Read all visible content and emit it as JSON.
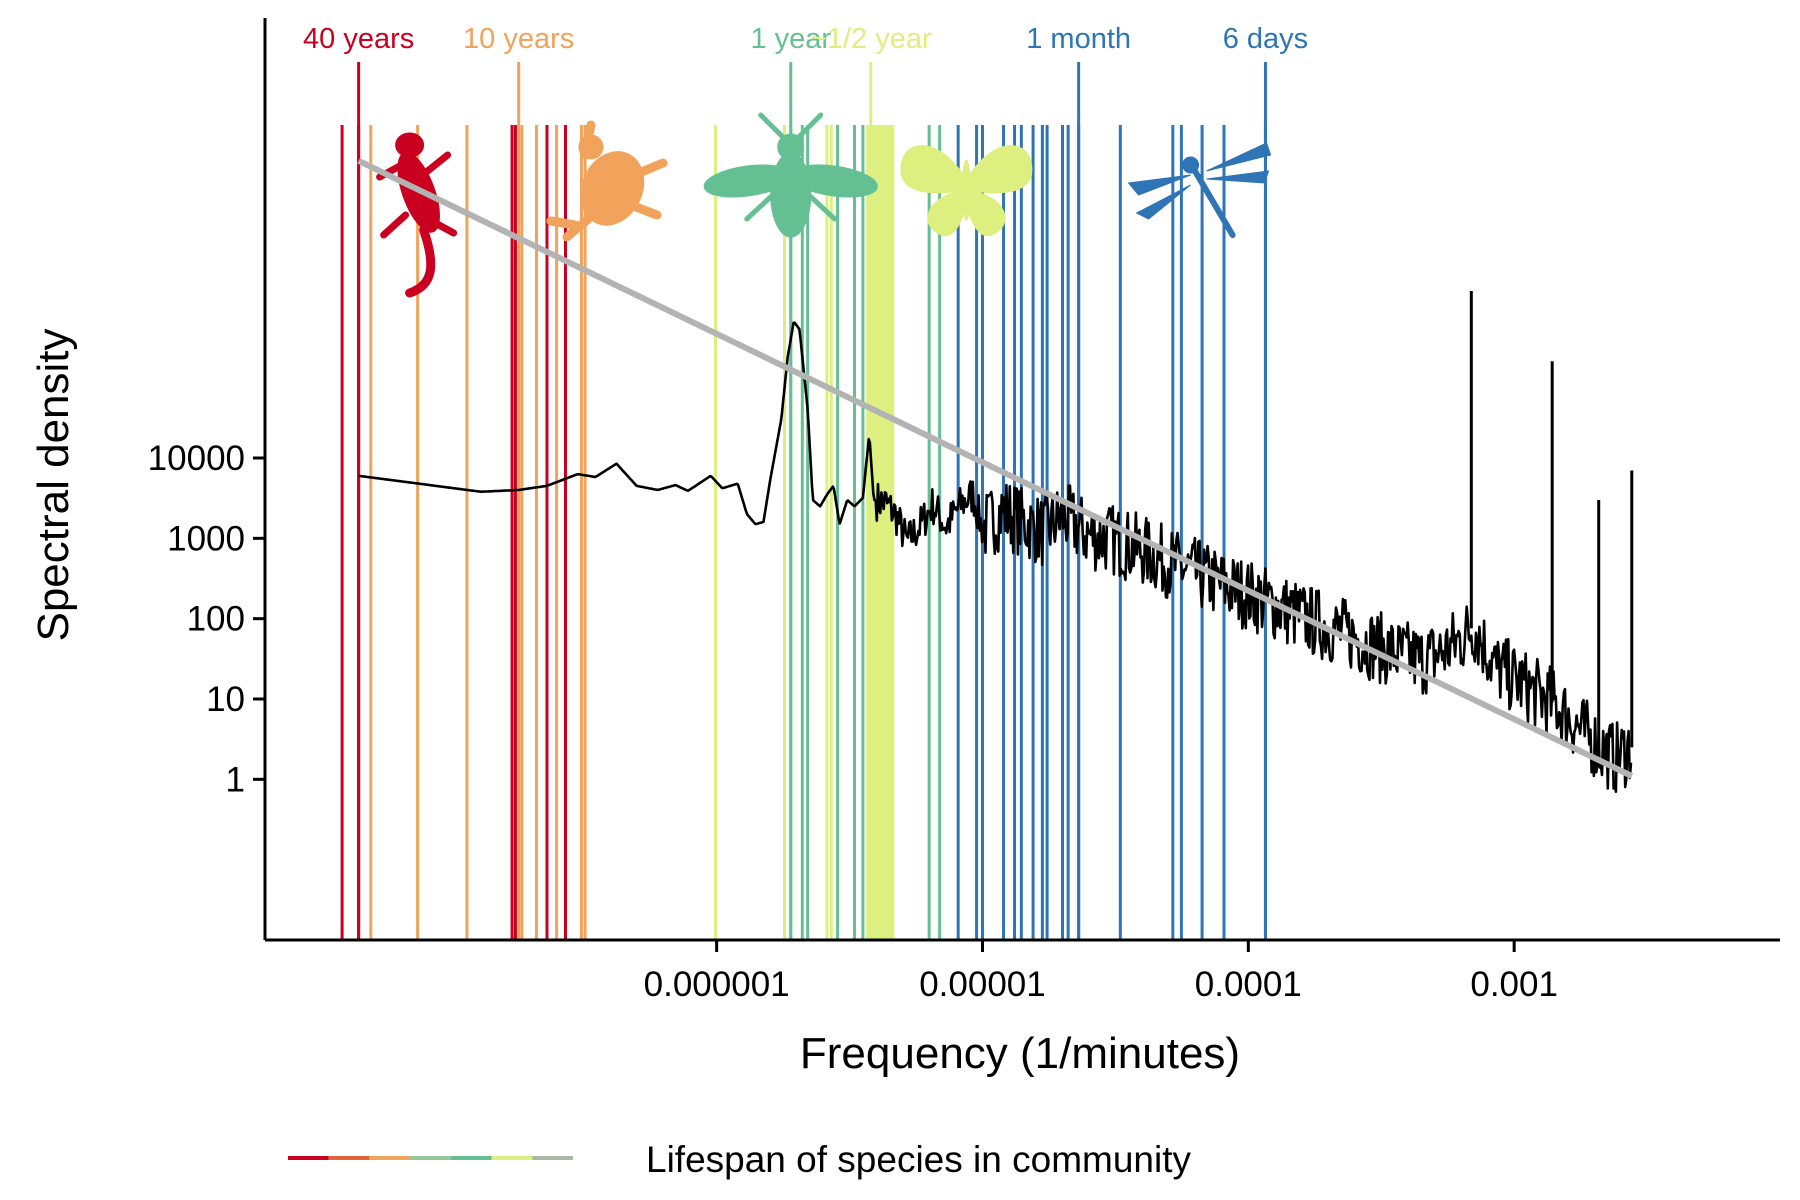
{
  "chart_data": {
    "type": "line",
    "xlabel": "Frequency (1/minutes)",
    "ylabel": "Spectral density",
    "x_scale": "log",
    "y_scale": "log",
    "xlim": [
      2e-08,
      0.01
    ],
    "ylim": [
      0.01,
      3000000000
    ],
    "x_ticks": [
      {
        "value": 1e-06,
        "label": "0.000001"
      },
      {
        "value": 1e-05,
        "label": "0.00001"
      },
      {
        "value": 0.0001,
        "label": "0.0001"
      },
      {
        "value": 0.001,
        "label": "0.001"
      }
    ],
    "y_ticks": [
      {
        "value": 10000,
        "label": "10000"
      },
      {
        "value": 1000,
        "label": "1000"
      },
      {
        "value": 100,
        "label": "100"
      },
      {
        "value": 10,
        "label": "10"
      },
      {
        "value": 1,
        "label": "1"
      }
    ],
    "grid": false,
    "legend": {
      "position": "bottom",
      "label": "Lifespan of species in community",
      "colors": [
        "#c9001f",
        "#e0653a",
        "#f1a35b",
        "#93c89a",
        "#64c092",
        "#dcef7f",
        "#a8b8a4"
      ]
    },
    "spectrum": {
      "color": "#000000",
      "points": [
        [
          4.5e-08,
          6000
        ],
        [
          1.3e-07,
          3800
        ],
        [
          1.8e-07,
          4000
        ],
        [
          2.3e-07,
          4500
        ],
        [
          3e-07,
          6300
        ],
        [
          3.5e-07,
          5800
        ],
        [
          4.2e-07,
          8500
        ],
        [
          5e-07,
          4500
        ],
        [
          6e-07,
          4000
        ],
        [
          7e-07,
          4600
        ],
        [
          7.8e-07,
          3900
        ],
        [
          9.5e-07,
          6000
        ],
        [
          1.05e-06,
          4200
        ],
        [
          1.2e-06,
          4800
        ],
        [
          1.3e-06,
          2000
        ],
        [
          1.4e-06,
          1500
        ],
        [
          1.5e-06,
          1600
        ],
        [
          1.6e-06,
          6000
        ],
        [
          1.75e-06,
          30000
        ],
        [
          1.85e-06,
          180000
        ],
        [
          1.95e-06,
          500000
        ],
        [
          2.05e-06,
          400000
        ],
        [
          2.2e-06,
          40000
        ],
        [
          2.3e-06,
          3000
        ],
        [
          2.45e-06,
          2500
        ],
        [
          2.6e-06,
          3500
        ],
        [
          2.75e-06,
          4500
        ],
        [
          2.9e-06,
          1500
        ],
        [
          3.1e-06,
          3000
        ],
        [
          3.3e-06,
          2500
        ],
        [
          3.55e-06,
          3200
        ],
        [
          3.75e-06,
          20000
        ],
        [
          3.9e-06,
          3000
        ],
        [
          4.3e-06,
          2800
        ],
        [
          4.7e-06,
          2000
        ],
        [
          5.2e-06,
          900
        ],
        [
          5.8e-06,
          1400
        ],
        [
          6.5e-06,
          2600
        ],
        [
          7.3e-06,
          1400
        ],
        [
          8.2e-06,
          2500
        ],
        [
          9.2e-06,
          3500
        ],
        [
          1e-05,
          1300
        ],
        [
          1.2e-05,
          2200
        ],
        [
          1.4e-05,
          1600
        ],
        [
          1.7e-05,
          1200
        ],
        [
          2e-05,
          1900
        ],
        [
          2.5e-05,
          1100
        ],
        [
          3e-05,
          1000
        ],
        [
          4e-05,
          700
        ],
        [
          5e-05,
          500
        ],
        [
          6.5e-05,
          350
        ],
        [
          8e-05,
          260
        ],
        [
          0.0001,
          200
        ],
        [
          0.00013,
          140
        ],
        [
          0.00017,
          95
        ],
        [
          0.00022,
          70
        ],
        [
          0.00028,
          50
        ],
        [
          0.00035,
          38
        ],
        [
          0.00045,
          30
        ],
        [
          0.00055,
          40
        ],
        [
          0.00065,
          60
        ],
        [
          0.0007,
          80
        ],
        [
          0.00074,
          60
        ],
        [
          0.00085,
          25
        ],
        [
          0.001,
          18
        ],
        [
          0.0012,
          12
        ],
        [
          0.0014,
          9
        ],
        [
          0.0016,
          6
        ],
        [
          0.0018,
          4
        ],
        [
          0.0021,
          2.5
        ],
        [
          0.0024,
          1.8
        ],
        [
          0.00275,
          2.5
        ]
      ],
      "peaks": [
        {
          "x": 0.00069,
          "y": 1200000
        },
        {
          "x": 0.00139,
          "y": 160000
        },
        {
          "x": 0.00208,
          "y": 3000
        },
        {
          "x": 0.00277,
          "y": 7000
        }
      ]
    },
    "trend_line": {
      "color": "#b3b3b3",
      "x": [
        4.5e-08,
        0.00277
      ],
      "y": [
        50000000,
        1.1
      ]
    },
    "reference_lines": [
      {
        "label": "40 years",
        "x": 4.5e-08,
        "color": "#c9001f"
      },
      {
        "label": "10 years",
        "x": 1.8e-07,
        "color": "#f1a35b"
      },
      {
        "label": "1 year",
        "x": 1.9e-06,
        "color": "#64c092"
      },
      {
        "label": "~1/2 year",
        "x": 3.8e-06,
        "color": "#dcef7f"
      },
      {
        "label": "1 month",
        "x": 2.3e-05,
        "color": "#2f75b5"
      },
      {
        "label": "6 days",
        "x": 0.000116,
        "color": "#2f75b5"
      }
    ],
    "species_lines": {
      "red": {
        "color": "#c9001f",
        "x": [
          3.9e-08,
          4.5e-08,
          1.7e-07,
          1.75e-07,
          2.3e-07,
          2.7e-07
        ]
      },
      "orange": {
        "color": "#f1a35b",
        "x": [
          5e-08,
          7.5e-08,
          1.15e-07,
          1.85e-07,
          2.1e-07,
          2.5e-07,
          3.1e-07,
          3.2e-07
        ]
      },
      "yellow": {
        "color": "#dcef7f",
        "x": [
          9.9e-07,
          1.8e-06,
          2.6e-06,
          2.7e-06,
          3.7e-06,
          3.8e-06,
          3.9e-06,
          4e-06,
          4.1e-06,
          4.2e-06,
          4.3e-06,
          4.4e-06,
          4.5e-06,
          4.6e-06
        ]
      },
      "green": {
        "color": "#64c092",
        "x": [
          1.9e-06,
          2.1e-06,
          2.2e-06,
          2.85e-06,
          3.3e-06,
          3.55e-06,
          6.3e-06,
          6.9e-06
        ]
      },
      "blue": {
        "color": "#2f75b5",
        "x": [
          8.1e-06,
          9.5e-06,
          1e-05,
          1.2e-05,
          1.32e-05,
          1.4e-05,
          1.55e-05,
          1.68e-05,
          1.75e-05,
          2e-05,
          2.1e-05,
          2.3e-05,
          3.3e-05,
          5.2e-05,
          5.6e-05,
          6.7e-05,
          8.1e-05,
          0.000116
        ]
      }
    },
    "silhouettes": [
      {
        "name": "lizard",
        "color": "#c9001f",
        "x": 7e-08
      },
      {
        "name": "frog",
        "color": "#f1a35b",
        "x": 3.8e-07
      },
      {
        "name": "bee",
        "color": "#64c092",
        "x": 1.9e-06
      },
      {
        "name": "butterfly",
        "color": "#dcef7f",
        "x": 8.7e-06
      },
      {
        "name": "dragonfly",
        "color": "#2f75b5",
        "x": 6.5e-05
      }
    ]
  }
}
